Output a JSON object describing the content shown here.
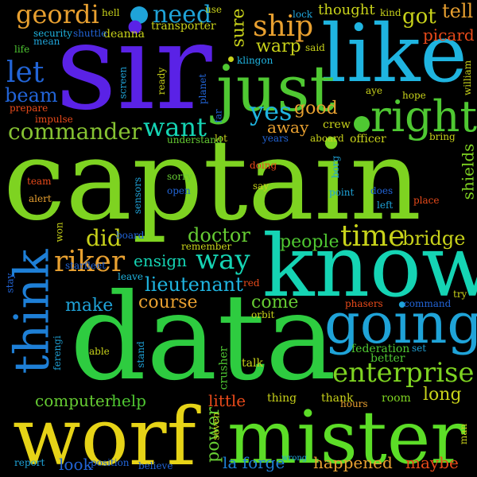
{
  "words": [
    {
      "text": "captain",
      "color": "#7ed321"
    },
    {
      "text": "data",
      "color": "#2ecc40"
    },
    {
      "text": "sir",
      "color": "#5a22e6"
    },
    {
      "text": "know",
      "color": "#15d4b4"
    },
    {
      "text": "worf",
      "color": "#e6d317"
    },
    {
      "text": "mister",
      "color": "#5cdd27"
    },
    {
      "text": "like",
      "color": "#1fb4e0"
    },
    {
      "text": "just",
      "color": "#4fc832"
    },
    {
      "text": "going",
      "color": "#1fa3d8"
    },
    {
      "text": "think",
      "color": "#1e7fd6"
    },
    {
      "text": "right",
      "color": "#4fc832"
    },
    {
      "text": "enterprise",
      "color": "#7ed321"
    },
    {
      "text": "time",
      "color": "#c8d21a"
    },
    {
      "text": "geordi",
      "color": "#e8a030"
    },
    {
      "text": "ship",
      "color": "#e8a030"
    },
    {
      "text": "commander",
      "color": "#86c232"
    },
    {
      "text": "want",
      "color": "#15d4b4"
    },
    {
      "text": "yes",
      "color": "#1fb4e0"
    },
    {
      "text": "need",
      "color": "#1fa3d8"
    },
    {
      "text": "riker",
      "color": "#e8a030"
    },
    {
      "text": "way",
      "color": "#15d4b4"
    },
    {
      "text": "bridge",
      "color": "#c8d21a"
    },
    {
      "text": "let",
      "color": "#2264d6"
    },
    {
      "text": "beam",
      "color": "#2264d6"
    },
    {
      "text": "did",
      "color": "#c8d21a"
    },
    {
      "text": "doctor",
      "color": "#66cc33"
    },
    {
      "text": "people",
      "color": "#4fc832"
    },
    {
      "text": "lieutenant",
      "color": "#1fb4e0"
    },
    {
      "text": "course",
      "color": "#e8a030"
    },
    {
      "text": "come",
      "color": "#66cc33"
    },
    {
      "text": "make",
      "color": "#1fa3d8"
    },
    {
      "text": "ensign",
      "color": "#15d4b4"
    },
    {
      "text": "got",
      "color": "#c8d21a"
    },
    {
      "text": "tell",
      "color": "#e8a030"
    },
    {
      "text": "warp",
      "color": "#c8d21a"
    },
    {
      "text": "good",
      "color": "#e8a030"
    },
    {
      "text": "away",
      "color": "#e8a030"
    },
    {
      "text": "sure",
      "color": "#c8d21a"
    },
    {
      "text": "picard",
      "color": "#e84a1a"
    },
    {
      "text": "thought",
      "color": "#c8d21a"
    },
    {
      "text": "computer",
      "color": "#66cc33"
    },
    {
      "text": "help",
      "color": "#4fc832"
    },
    {
      "text": "little",
      "color": "#e84a1a"
    },
    {
      "text": "long",
      "color": "#c8d21a"
    },
    {
      "text": "power",
      "color": "#66cc33"
    },
    {
      "text": "look",
      "color": "#2264d6"
    },
    {
      "text": "la forge",
      "color": "#1e7fd6"
    },
    {
      "text": "happened",
      "color": "#e8a030"
    },
    {
      "text": "maybe",
      "color": "#e84a1a"
    },
    {
      "text": "shields",
      "color": "#7ed321"
    },
    {
      "text": "crew",
      "color": "#c8d21a"
    },
    {
      "text": "officer",
      "color": "#c8d21a"
    },
    {
      "text": "thing",
      "color": "#c8d21a"
    },
    {
      "text": "thank",
      "color": "#c8d21a"
    },
    {
      "text": "talk",
      "color": "#c8d21a"
    },
    {
      "text": "crusher",
      "color": "#4fc832"
    },
    {
      "text": "federation",
      "color": "#4fc832"
    },
    {
      "text": "better",
      "color": "#4fc832"
    },
    {
      "text": "room",
      "color": "#7ed321"
    },
    {
      "text": "transporter",
      "color": "#c8d21a"
    },
    {
      "text": "deanna",
      "color": "#c8d21a"
    },
    {
      "text": "security",
      "color": "#1fb4e0"
    },
    {
      "text": "shuttle",
      "color": "#2264d6"
    },
    {
      "text": "mean",
      "color": "#1fa3d8"
    },
    {
      "text": "life",
      "color": "#4fc832"
    },
    {
      "text": "hell",
      "color": "#c8d21a"
    },
    {
      "text": "use",
      "color": "#c8d21a"
    },
    {
      "text": "lock",
      "color": "#1fa3d8"
    },
    {
      "text": "said",
      "color": "#c8d21a"
    },
    {
      "text": "kind",
      "color": "#c8d21a"
    },
    {
      "text": "klingon",
      "color": "#1fb4e0"
    },
    {
      "text": "prepare",
      "color": "#e84a1a"
    },
    {
      "text": "impulse",
      "color": "#e84a1a"
    },
    {
      "text": "screen",
      "color": "#1fa3d8"
    },
    {
      "text": "ready",
      "color": "#c8d21a"
    },
    {
      "text": "planet",
      "color": "#2264d6"
    },
    {
      "text": "far",
      "color": "#2264d6"
    },
    {
      "text": "lot",
      "color": "#c8d21a"
    },
    {
      "text": "aye",
      "color": "#c8d21a"
    },
    {
      "text": "hope",
      "color": "#c8d21a"
    },
    {
      "text": "william",
      "color": "#c8d21a"
    },
    {
      "text": "understand",
      "color": "#66cc33"
    },
    {
      "text": "years",
      "color": "#2264d6"
    },
    {
      "text": "aboard",
      "color": "#c8d21a"
    },
    {
      "text": "bring",
      "color": "#c8d21a"
    },
    {
      "text": "team",
      "color": "#e84a1a"
    },
    {
      "text": "alert",
      "color": "#e8a030"
    },
    {
      "text": "sorry",
      "color": "#66cc33"
    },
    {
      "text": "open",
      "color": "#2264d6"
    },
    {
      "text": "sensors",
      "color": "#1fa3d8"
    },
    {
      "text": "doing",
      "color": "#e84a1a"
    },
    {
      "text": "say",
      "color": "#c8d21a"
    },
    {
      "text": "borg",
      "color": "#1fa3d8"
    },
    {
      "text": "point",
      "color": "#1fa3d8"
    },
    {
      "text": "does",
      "color": "#2264d6"
    },
    {
      "text": "left",
      "color": "#1fa3d8"
    },
    {
      "text": "place",
      "color": "#e84a1a"
    },
    {
      "text": "won",
      "color": "#c8d21a"
    },
    {
      "text": "board",
      "color": "#2264d6"
    },
    {
      "text": "remember",
      "color": "#c8d21a"
    },
    {
      "text": "starfleet",
      "color": "#2264d6"
    },
    {
      "text": "leave",
      "color": "#1fb4e0"
    },
    {
      "text": "stay",
      "color": "#2264d6"
    },
    {
      "text": "red",
      "color": "#e84a1a"
    },
    {
      "text": "orbit",
      "color": "#c8d21a"
    },
    {
      "text": "phasers",
      "color": "#e84a1a"
    },
    {
      "text": "command",
      "color": "#2264d6"
    },
    {
      "text": "try",
      "color": "#c8d21a"
    },
    {
      "text": "able",
      "color": "#c8d21a"
    },
    {
      "text": "ferengi",
      "color": "#1fa3d8"
    },
    {
      "text": "stand",
      "color": "#1fa3d8"
    },
    {
      "text": "set",
      "color": "#1fa3d8"
    },
    {
      "text": "hours",
      "color": "#e8a030"
    },
    {
      "text": "man",
      "color": "#c8d21a"
    },
    {
      "text": "seven",
      "color": "#c8d21a"
    },
    {
      "text": "report",
      "color": "#1fa3d8"
    },
    {
      "text": "position",
      "color": "#2264d6"
    },
    {
      "text": "believe",
      "color": "#2264d6"
    },
    {
      "text": "wrong",
      "color": "#1fa3d8"
    }
  ]
}
